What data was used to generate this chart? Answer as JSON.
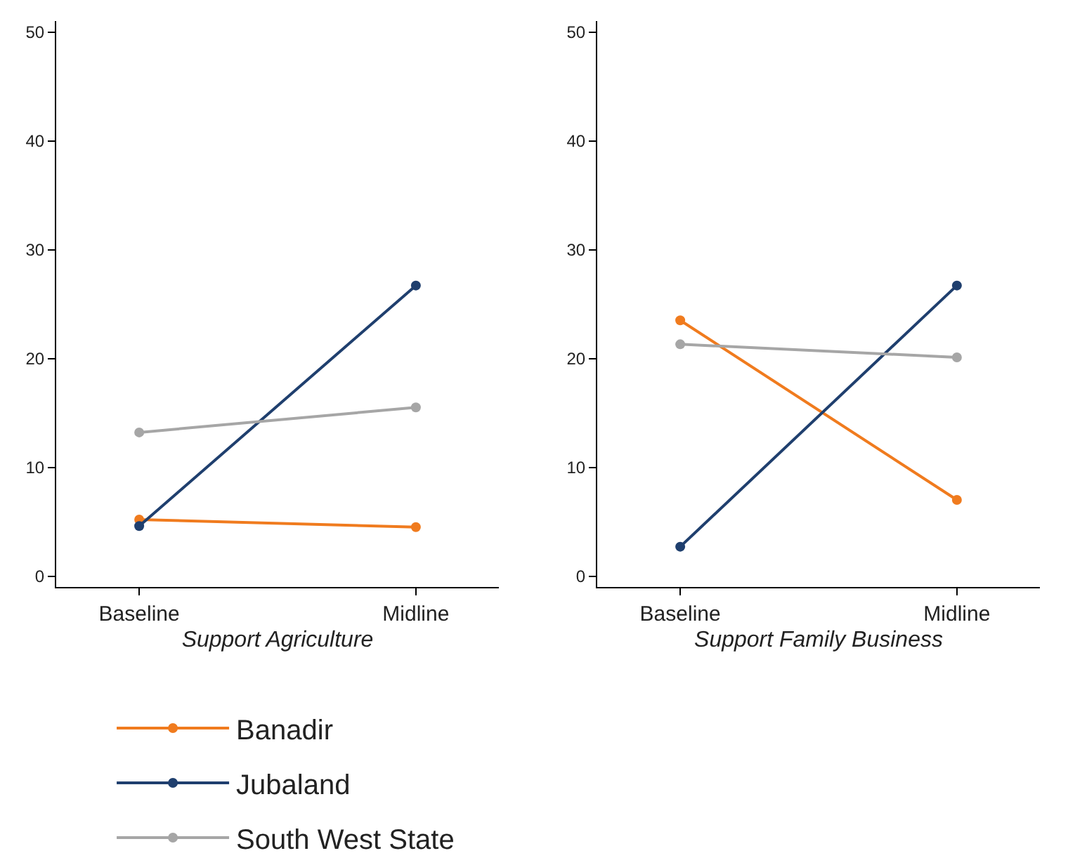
{
  "chart_data": [
    {
      "type": "line",
      "xlabel": "Support Agriculture",
      "categories": [
        "Baseline",
        "Midline"
      ],
      "ylim": [
        -1,
        51
      ],
      "yticks": [
        0,
        10,
        20,
        30,
        40,
        50
      ],
      "legend": "bottom",
      "marker": "circle",
      "line_style": "solid",
      "series": [
        {
          "name": "Banadir",
          "color": "#f07b1e",
          "values": [
            5.2,
            4.5
          ]
        },
        {
          "name": "Jubaland",
          "color": "#1f3f6e",
          "values": [
            4.6,
            26.7
          ]
        },
        {
          "name": "South West State",
          "color": "#a6a6a6",
          "values": [
            13.2,
            15.5
          ]
        }
      ]
    },
    {
      "type": "line",
      "xlabel": "Support Family Business",
      "categories": [
        "Baseline",
        "Midline"
      ],
      "ylim": [
        -1,
        51
      ],
      "yticks": [
        0,
        10,
        20,
        30,
        40,
        50
      ],
      "legend": "bottom",
      "marker": "circle",
      "line_style": "solid",
      "series": [
        {
          "name": "Banadir",
          "color": "#f07b1e",
          "values": [
            23.5,
            7.0
          ]
        },
        {
          "name": "Jubaland",
          "color": "#1f3f6e",
          "values": [
            2.7,
            26.7
          ]
        },
        {
          "name": "South West State",
          "color": "#a6a6a6",
          "values": [
            21.3,
            20.1
          ]
        }
      ]
    }
  ]
}
